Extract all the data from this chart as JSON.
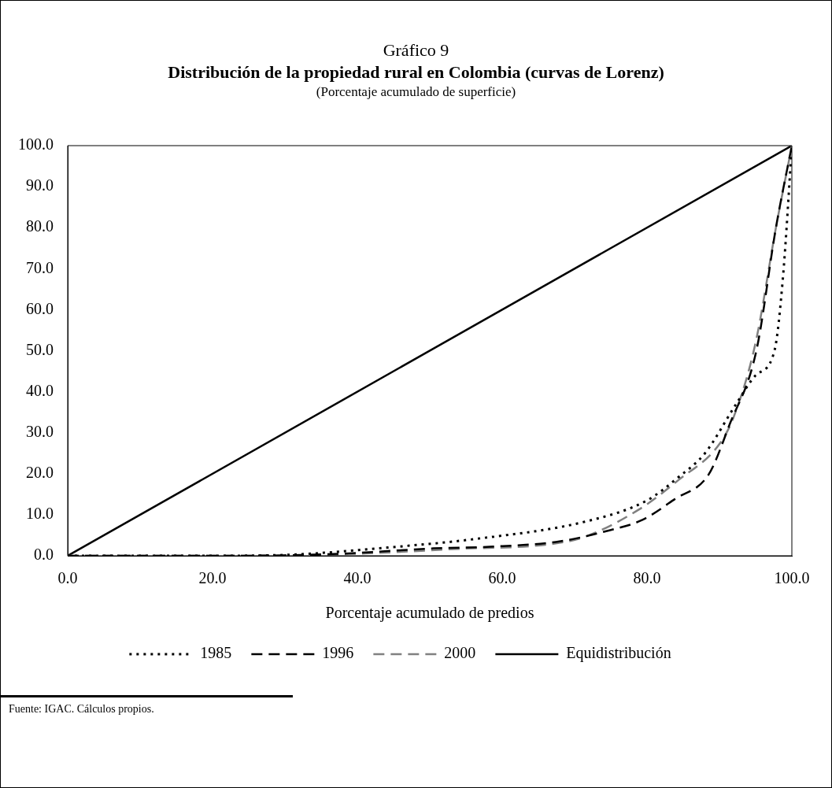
{
  "chart_data": {
    "type": "line",
    "title": "Distribución de la propiedad rural en Colombia (curvas de Lorenz)",
    "subtitle": "(Porcentaje acumulado de superficie)",
    "xlabel": "Porcentaje acumulado de predios",
    "annotations": [
      "Gráfico 9",
      "Fuente: IGAC. Cálculos propios."
    ],
    "xlim": [
      0,
      100
    ],
    "ylim": [
      0,
      100
    ],
    "xticks": [
      {
        "value": 0,
        "label": "0.0"
      },
      {
        "value": 20,
        "label": "20.0"
      },
      {
        "value": 40,
        "label": "40.0"
      },
      {
        "value": 60,
        "label": "60.0"
      },
      {
        "value": 80,
        "label": "80.0"
      },
      {
        "value": 100,
        "label": "100.0"
      }
    ],
    "yticks": [
      {
        "value": 0,
        "label": "0.0"
      },
      {
        "value": 10,
        "label": "10.0"
      },
      {
        "value": 20,
        "label": "20.0"
      },
      {
        "value": 30,
        "label": "30.0"
      },
      {
        "value": 40,
        "label": "40.0"
      },
      {
        "value": 50,
        "label": "50.0"
      },
      {
        "value": 60,
        "label": "60.0"
      },
      {
        "value": 70,
        "label": "70.0"
      },
      {
        "value": 80,
        "label": "80.0"
      },
      {
        "value": 90,
        "label": "90.0"
      },
      {
        "value": 100,
        "label": "100.0"
      }
    ],
    "grid": false,
    "legend": "bottom",
    "marker": "none",
    "series": [
      {
        "name": "1985",
        "color": "#000000",
        "line_style": "dotted",
        "x": [
          0,
          20,
          30,
          34.3,
          42.8,
          56.3,
          71.4,
          80,
          84.3,
          88,
          92.2,
          95,
          97.6,
          98.8,
          100
        ],
        "values": [
          0,
          0,
          0.2,
          0.6,
          1.8,
          4.1,
          8.3,
          13.5,
          19.1,
          25,
          36.7,
          44,
          50,
          68.5,
          100
        ]
      },
      {
        "name": "1996",
        "color": "#000000",
        "line_style": "dashed",
        "x": [
          0,
          20,
          30,
          38.9,
          50.5,
          58.3,
          67.9,
          74.8,
          79.3,
          83.9,
          88.5,
          91.4,
          95.1,
          97.8,
          100
        ],
        "values": [
          0,
          0,
          0.1,
          0.6,
          1.8,
          2.2,
          3.5,
          6.2,
          8.7,
          13.9,
          19.8,
          32,
          50,
          80,
          100
        ]
      },
      {
        "name": "2000",
        "color": "#808080",
        "line_style": "dashed",
        "x": [
          0,
          20,
          30,
          40,
          54.2,
          66,
          71.2,
          78.9,
          84.3,
          90.1,
          92,
          95,
          97.8,
          100
        ],
        "values": [
          0,
          0,
          0.1,
          0.5,
          1.7,
          2.7,
          4.5,
          11.3,
          18.4,
          27.5,
          34,
          52,
          80,
          100
        ]
      },
      {
        "name": "Equidistribución",
        "color": "#000000",
        "line_style": "solid",
        "x": [
          0,
          100
        ],
        "values": [
          0,
          100
        ]
      }
    ]
  }
}
